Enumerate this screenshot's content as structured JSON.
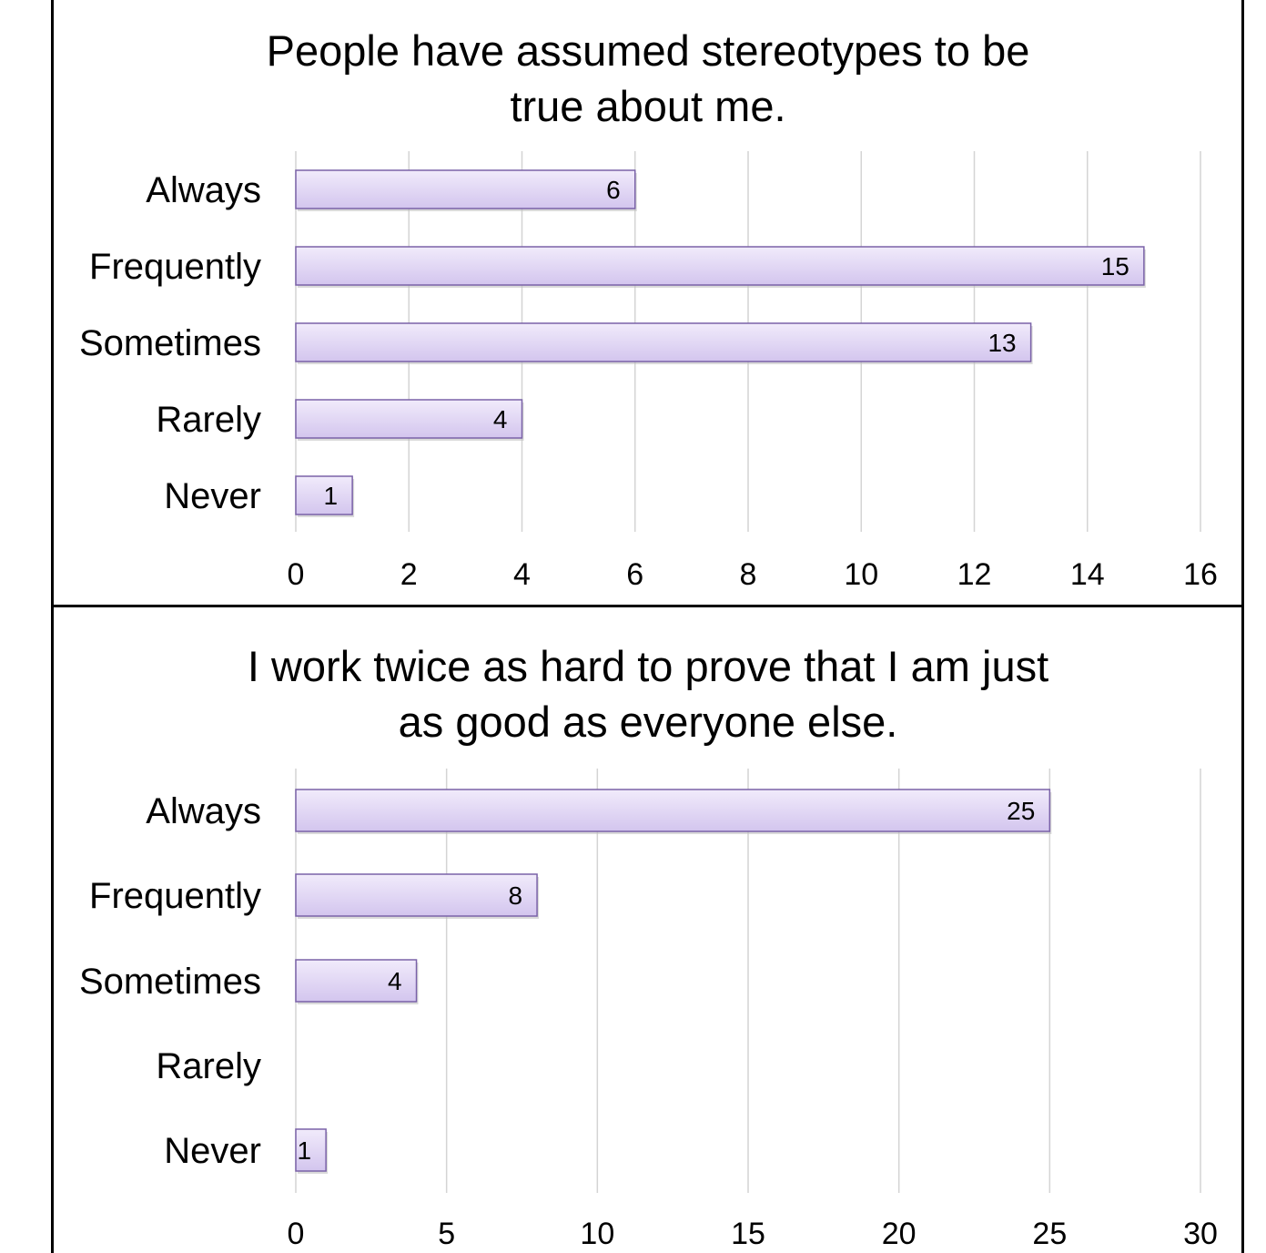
{
  "colors": {
    "bar_fill_light": "#f1ebfb",
    "bar_fill_dark": "#d3c5ee",
    "bar_stroke": "#7a62a8",
    "gridline": "#d4d4d4",
    "border": "#000000"
  },
  "chart_data": [
    {
      "type": "bar",
      "orientation": "horizontal",
      "title_lines": [
        "People have assumed stereotypes to be",
        "true about me."
      ],
      "categories": [
        "Always",
        "Frequently",
        "Sometimes",
        "Rarely",
        "Never"
      ],
      "values": [
        6,
        15,
        13,
        4,
        1
      ],
      "xlim": [
        0,
        16
      ],
      "xticks": [
        0,
        2,
        4,
        6,
        8,
        10,
        12,
        14,
        16
      ],
      "grid": true,
      "legend": "none"
    },
    {
      "type": "bar",
      "orientation": "horizontal",
      "title_lines": [
        "I work twice as hard to prove that I am just",
        "as good as everyone else."
      ],
      "categories": [
        "Always",
        "Frequently",
        "Sometimes",
        "Rarely",
        "Never"
      ],
      "values": [
        25,
        8,
        4,
        0,
        1
      ],
      "xlim": [
        0,
        30
      ],
      "xticks": [
        0,
        5,
        10,
        15,
        20,
        25,
        30
      ],
      "grid": true,
      "legend": "none"
    }
  ]
}
